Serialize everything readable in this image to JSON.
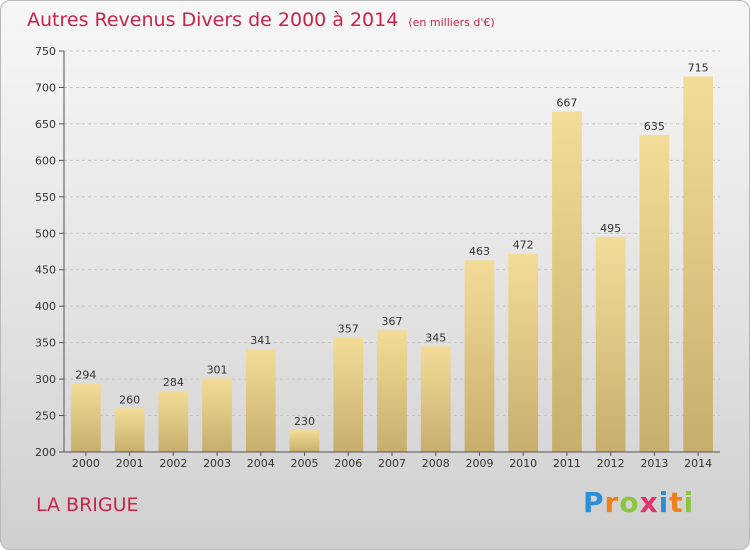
{
  "title": "Autres Revenus Divers de 2000 à 2014",
  "subtitle": "(en milliers d'€)",
  "place": "LA BRIGUE",
  "logo": {
    "letters": [
      "P",
      "r",
      "o",
      "x",
      "i",
      "t",
      "i"
    ],
    "colors": [
      "#2a8fd6",
      "#f07f1a",
      "#8cc63f",
      "#e5336a",
      "#2a8fd6",
      "#f07f1a",
      "#8cc63f"
    ]
  },
  "colors": {
    "title": "#c8244a",
    "bar_top": "#f3dc98",
    "bar_bottom": "#c8ae6c"
  },
  "chart_data": {
    "type": "bar",
    "categories": [
      "2000",
      "2001",
      "2002",
      "2003",
      "2004",
      "2005",
      "2006",
      "2007",
      "2008",
      "2009",
      "2010",
      "2011",
      "2012",
      "2013",
      "2014"
    ],
    "values": [
      294,
      260,
      284,
      301,
      341,
      230,
      357,
      367,
      345,
      463,
      472,
      667,
      495,
      635,
      715
    ],
    "ylim": [
      200,
      750
    ],
    "yticks": [
      200,
      250,
      300,
      350,
      400,
      450,
      500,
      550,
      600,
      650,
      700,
      750
    ],
    "grid": true,
    "xlabel": "",
    "ylabel": ""
  }
}
